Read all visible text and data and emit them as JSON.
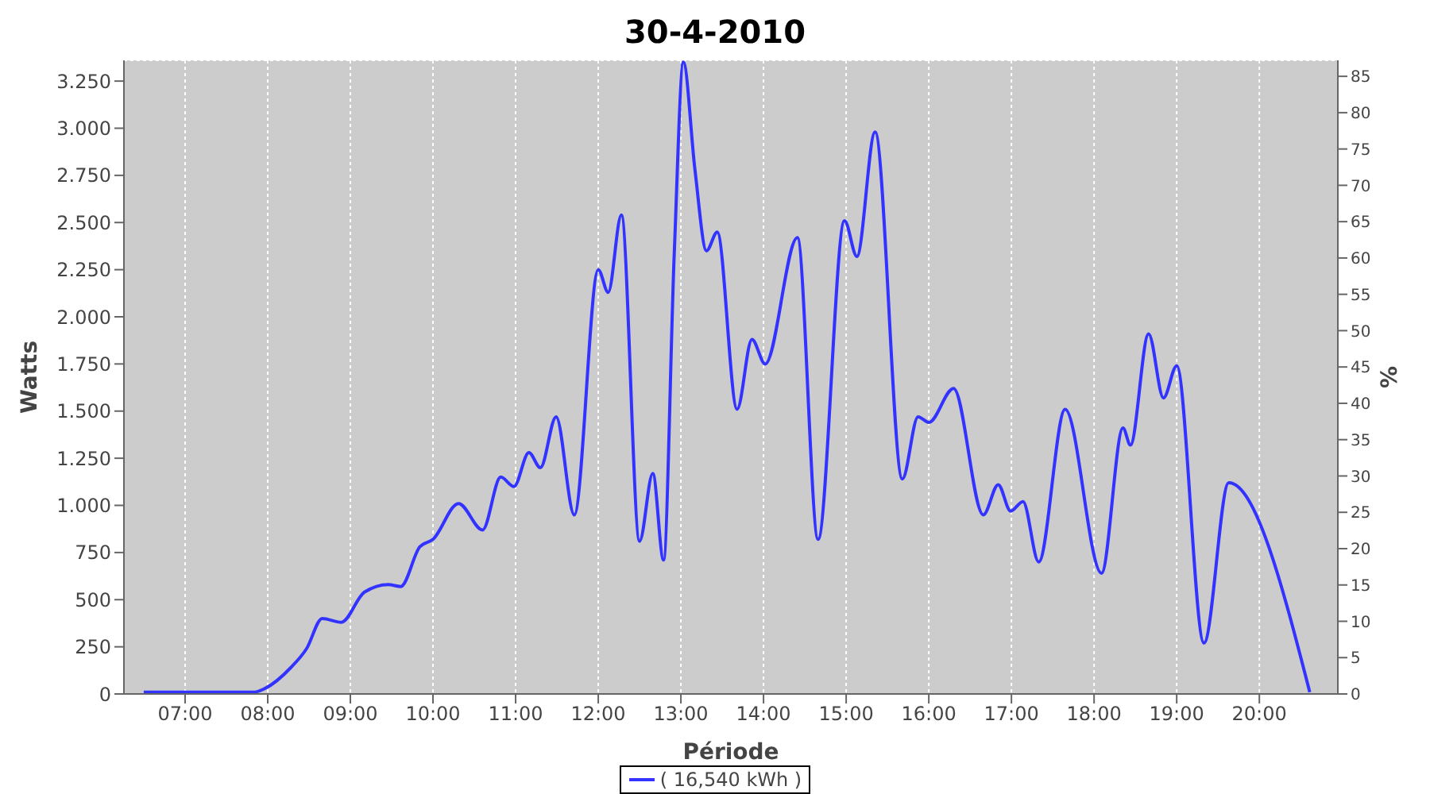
{
  "chart_data": {
    "type": "line",
    "title": "30-4-2010",
    "xlabel": "Période",
    "ylabel": "Watts",
    "y2label": "%",
    "x": [
      6.5,
      7.84,
      7.97,
      8.28,
      8.47,
      8.66,
      8.89,
      9.17,
      9.46,
      9.61,
      9.84,
      10.0,
      10.31,
      10.6,
      10.82,
      10.98,
      11.16,
      11.3,
      11.49,
      11.71,
      12.0,
      12.12,
      12.28,
      12.5,
      12.66,
      12.79,
      12.92,
      13.03,
      13.17,
      13.31,
      13.44,
      13.68,
      13.86,
      14.02,
      14.41,
      14.66,
      14.98,
      15.13,
      15.35,
      15.68,
      15.87,
      16.0,
      16.3,
      16.66,
      16.84,
      16.99,
      17.14,
      17.33,
      17.65,
      18.09,
      18.35,
      18.44,
      18.66,
      18.84,
      19.0,
      19.33,
      19.63,
      20.61
    ],
    "series": [
      {
        "name": "( 16,540 kWh )",
        "color": "#3333ff",
        "values": [
          10,
          10,
          30,
          140,
          240,
          400,
          380,
          540,
          580,
          570,
          780,
          820,
          1010,
          870,
          1150,
          1100,
          1280,
          1200,
          1470,
          950,
          2250,
          2130,
          2540,
          810,
          1170,
          710,
          2340,
          3350,
          2780,
          2350,
          2450,
          1510,
          1880,
          1750,
          2420,
          820,
          2510,
          2320,
          2980,
          1140,
          1470,
          1440,
          1620,
          950,
          1110,
          970,
          1020,
          700,
          1510,
          640,
          1410,
          1320,
          1910,
          1570,
          1740,
          270,
          1120,
          10
        ]
      }
    ],
    "xlim": [
      6.26,
      20.95
    ],
    "xticks": [
      {
        "value": 7,
        "label": "07:00"
      },
      {
        "value": 8,
        "label": "08:00"
      },
      {
        "value": 9,
        "label": "09:00"
      },
      {
        "value": 10,
        "label": "10:00"
      },
      {
        "value": 11,
        "label": "11:00"
      },
      {
        "value": 12,
        "label": "12:00"
      },
      {
        "value": 13,
        "label": "13:00"
      },
      {
        "value": 14,
        "label": "14:00"
      },
      {
        "value": 15,
        "label": "15:00"
      },
      {
        "value": 16,
        "label": "16:00"
      },
      {
        "value": 17,
        "label": "17:00"
      },
      {
        "value": 18,
        "label": "18:00"
      },
      {
        "value": 19,
        "label": "19:00"
      },
      {
        "value": 20,
        "label": "20:00"
      }
    ],
    "ylim": [
      0,
      3360
    ],
    "yticks": [
      0,
      250,
      500,
      750,
      {
        "value": 1000,
        "label": "1.000"
      },
      {
        "value": 1250,
        "label": "1.250"
      },
      {
        "value": 1500,
        "label": "1.500"
      },
      {
        "value": 1750,
        "label": "1.750"
      },
      {
        "value": 2000,
        "label": "2.000"
      },
      {
        "value": 2250,
        "label": "2.250"
      },
      {
        "value": 2500,
        "label": "2.500"
      },
      {
        "value": 2750,
        "label": "2.750"
      },
      {
        "value": 3000,
        "label": "3.000"
      },
      {
        "value": 3250,
        "label": "3.250"
      }
    ],
    "y2lim": [
      0,
      87.2
    ],
    "y2ticks": [
      0,
      5,
      10,
      15,
      20,
      25,
      30,
      35,
      40,
      45,
      50,
      55,
      60,
      65,
      70,
      75,
      80,
      85
    ],
    "grid": true,
    "legend": "bottom",
    "marker": "none",
    "line_style": "solid"
  }
}
